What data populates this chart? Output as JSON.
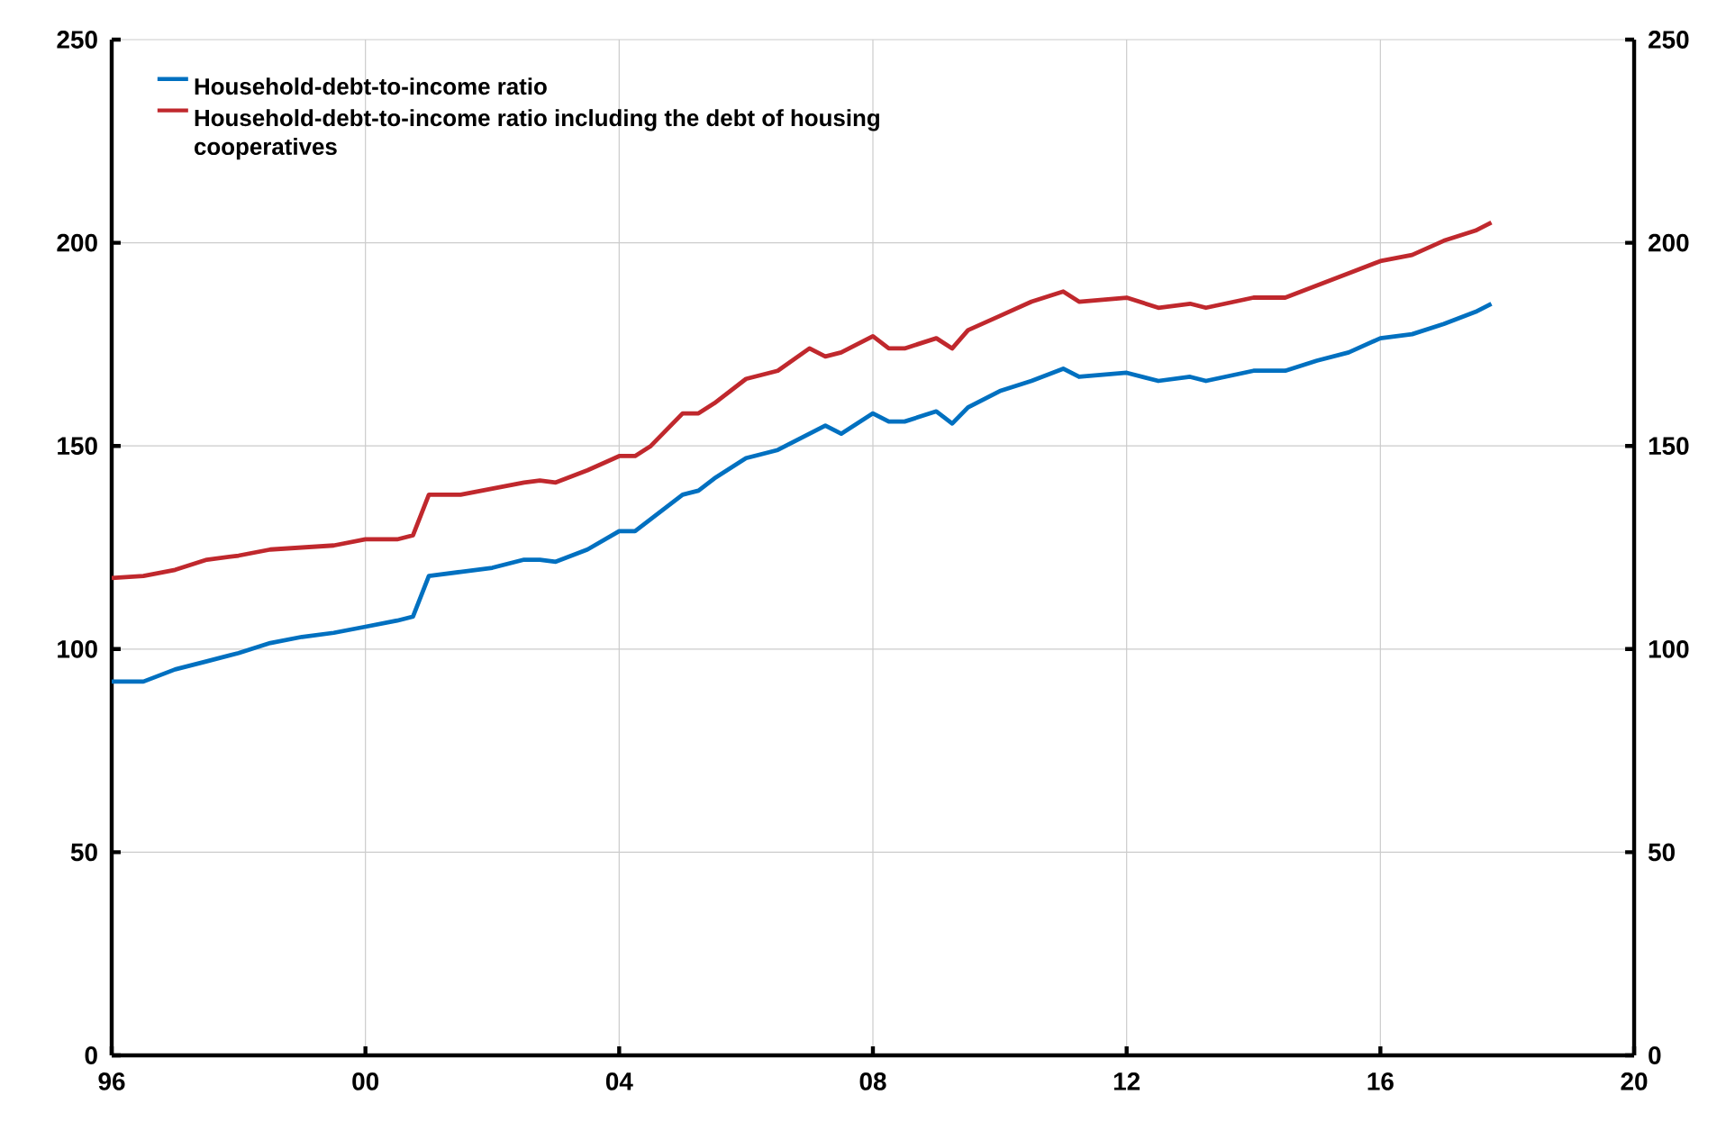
{
  "chart_data": {
    "type": "line",
    "x": [
      1996,
      1996.5,
      1997,
      1997.5,
      1998,
      1998.5,
      1999,
      1999.5,
      2000,
      2000.5,
      2000.75,
      2001,
      2001.5,
      2002,
      2002.5,
      2002.75,
      2003,
      2003.5,
      2004,
      2004.25,
      2004.5,
      2005,
      2005.25,
      2005.5,
      2006,
      2006.5,
      2007,
      2007.25,
      2007.5,
      2008,
      2008.25,
      2008.5,
      2009,
      2009.25,
      2009.5,
      2010,
      2010.5,
      2011,
      2011.25,
      2012,
      2012.5,
      2013,
      2013.25,
      2014,
      2014.5,
      2015,
      2015.5,
      2016,
      2016.5,
      2017,
      2017.5,
      2017.75
    ],
    "series": [
      {
        "name": "Household-debt-to-income ratio",
        "color": "#0070c0",
        "values": [
          92,
          92,
          95,
          97,
          99,
          101.5,
          103,
          104,
          105.5,
          107,
          108,
          118,
          119,
          120,
          122,
          122,
          121.5,
          124.5,
          129,
          129,
          132,
          138,
          139,
          142,
          147,
          149,
          153,
          155,
          153,
          158,
          156,
          156,
          158.5,
          155.5,
          159.5,
          163.5,
          166,
          169,
          167,
          168,
          166,
          167,
          166,
          168.5,
          168.5,
          171,
          173,
          176.5,
          177.5,
          180,
          183,
          185
        ]
      },
      {
        "name": "Household-debt-to-income ratio including the debt of housing cooperatives",
        "color": "#c0282d",
        "values": [
          117.5,
          118,
          119.5,
          122,
          123,
          124.5,
          125,
          125.5,
          127,
          127,
          128,
          138,
          138,
          139.5,
          141,
          141.5,
          141,
          144,
          147.5,
          147.5,
          150,
          158,
          158,
          160.5,
          166.5,
          168.5,
          174,
          172,
          173,
          177,
          174,
          174,
          176.5,
          174,
          178.5,
          182,
          185.5,
          188,
          185.5,
          186.5,
          184,
          185,
          184,
          186.5,
          186.5,
          189.5,
          192.5,
          195.5,
          197,
          200.5,
          203,
          205
        ]
      }
    ],
    "xlim": [
      1996,
      2020
    ],
    "xticks": [
      {
        "value": 1996,
        "label": "96"
      },
      {
        "value": 2000,
        "label": "00"
      },
      {
        "value": 2004,
        "label": "04"
      },
      {
        "value": 2008,
        "label": "08"
      },
      {
        "value": 2012,
        "label": "12"
      },
      {
        "value": 2016,
        "label": "16"
      },
      {
        "value": 2020,
        "label": "20"
      }
    ],
    "ylim": [
      0,
      250
    ],
    "yticks": [
      0,
      50,
      100,
      150,
      200,
      250
    ],
    "y2lim": [
      0,
      250
    ],
    "y2ticks": [
      0,
      50,
      100,
      150,
      200,
      250
    ],
    "grid": true,
    "legend": "top left",
    "marker": "none",
    "line_style": "solid"
  }
}
